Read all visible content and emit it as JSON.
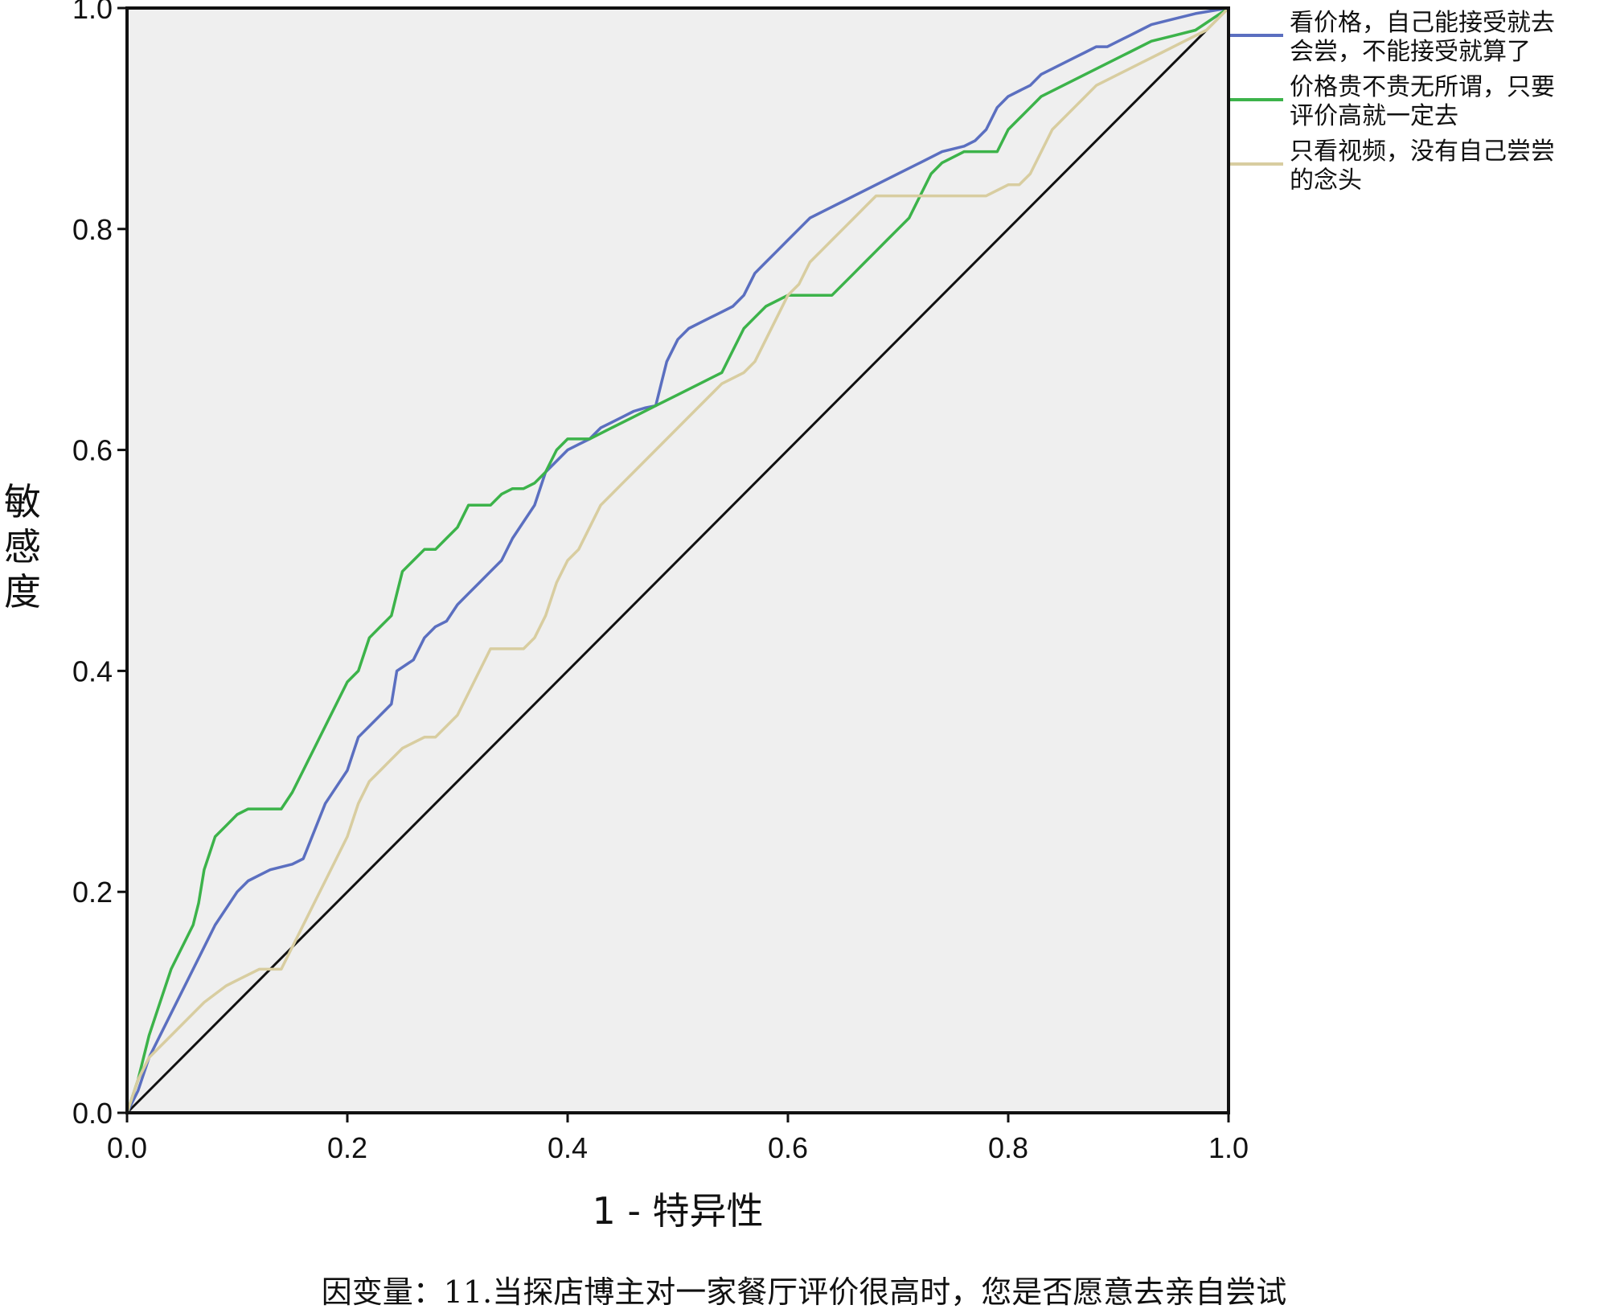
{
  "chart_data": {
    "type": "line",
    "title": "",
    "xlabel": "1 - 特异性",
    "ylabel": "敏感度",
    "caption": "因变量：11.当探店博主对一家餐厅评价很高时，您是否愿意去亲自尝试",
    "xlim": [
      0,
      1
    ],
    "ylim": [
      0,
      1
    ],
    "x_ticks": [
      "0.0",
      "0.2",
      "0.4",
      "0.6",
      "0.8",
      "1.0"
    ],
    "y_ticks": [
      "0.0",
      "0.2",
      "0.4",
      "0.6",
      "0.8",
      "1.0"
    ],
    "grid": false,
    "legend_position": "right",
    "plot_background": "#efefef",
    "reference_line": {
      "color": "#111111",
      "x": [
        0,
        1
      ],
      "y": [
        0,
        1
      ]
    },
    "series": [
      {
        "name_lines": [
          "看价格，自己能接受就去",
          "会尝，不能接受就算了"
        ],
        "color": "#5b6fc0",
        "x": [
          0,
          0.01,
          0.02,
          0.03,
          0.04,
          0.06,
          0.08,
          0.1,
          0.11,
          0.12,
          0.13,
          0.15,
          0.16,
          0.18,
          0.19,
          0.2,
          0.21,
          0.22,
          0.23,
          0.24,
          0.245,
          0.26,
          0.27,
          0.28,
          0.29,
          0.3,
          0.31,
          0.32,
          0.33,
          0.34,
          0.35,
          0.37,
          0.38,
          0.4,
          0.41,
          0.42,
          0.43,
          0.44,
          0.45,
          0.46,
          0.47,
          0.48,
          0.485,
          0.49,
          0.5,
          0.51,
          0.52,
          0.53,
          0.54,
          0.55,
          0.56,
          0.57,
          0.58,
          0.59,
          0.6,
          0.61,
          0.62,
          0.63,
          0.64,
          0.65,
          0.66,
          0.68,
          0.7,
          0.72,
          0.74,
          0.76,
          0.77,
          0.78,
          0.79,
          0.8,
          0.81,
          0.82,
          0.83,
          0.84,
          0.85,
          0.86,
          0.87,
          0.88,
          0.89,
          0.9,
          0.91,
          0.92,
          0.93,
          0.95,
          0.97,
          1.0
        ],
        "y": [
          0,
          0.02,
          0.05,
          0.07,
          0.09,
          0.13,
          0.17,
          0.2,
          0.21,
          0.215,
          0.22,
          0.225,
          0.23,
          0.28,
          0.295,
          0.31,
          0.34,
          0.35,
          0.36,
          0.37,
          0.4,
          0.41,
          0.43,
          0.44,
          0.445,
          0.46,
          0.47,
          0.48,
          0.49,
          0.5,
          0.52,
          0.55,
          0.58,
          0.6,
          0.605,
          0.61,
          0.62,
          0.625,
          0.63,
          0.635,
          0.638,
          0.64,
          0.66,
          0.68,
          0.7,
          0.71,
          0.715,
          0.72,
          0.725,
          0.73,
          0.74,
          0.76,
          0.77,
          0.78,
          0.79,
          0.8,
          0.81,
          0.815,
          0.82,
          0.825,
          0.83,
          0.84,
          0.85,
          0.86,
          0.87,
          0.875,
          0.88,
          0.89,
          0.91,
          0.92,
          0.925,
          0.93,
          0.94,
          0.945,
          0.95,
          0.955,
          0.96,
          0.965,
          0.965,
          0.97,
          0.975,
          0.98,
          0.985,
          0.99,
          0.995,
          1.0
        ]
      },
      {
        "name_lines": [
          "价格贵不贵无所谓，只要",
          "评价高就一定去"
        ],
        "color": "#3cb34a",
        "x": [
          0,
          0.01,
          0.02,
          0.03,
          0.04,
          0.05,
          0.06,
          0.065,
          0.07,
          0.075,
          0.08,
          0.09,
          0.1,
          0.11,
          0.12,
          0.13,
          0.14,
          0.15,
          0.16,
          0.17,
          0.18,
          0.19,
          0.2,
          0.21,
          0.22,
          0.23,
          0.24,
          0.245,
          0.25,
          0.26,
          0.27,
          0.28,
          0.29,
          0.3,
          0.31,
          0.32,
          0.33,
          0.34,
          0.35,
          0.36,
          0.37,
          0.38,
          0.39,
          0.4,
          0.42,
          0.44,
          0.46,
          0.48,
          0.5,
          0.52,
          0.54,
          0.55,
          0.56,
          0.57,
          0.58,
          0.6,
          0.62,
          0.64,
          0.66,
          0.67,
          0.68,
          0.69,
          0.7,
          0.71,
          0.72,
          0.73,
          0.74,
          0.76,
          0.78,
          0.79,
          0.8,
          0.81,
          0.82,
          0.83,
          0.85,
          0.87,
          0.89,
          0.91,
          0.93,
          0.95,
          0.97,
          1.0
        ],
        "y": [
          0,
          0.03,
          0.07,
          0.1,
          0.13,
          0.15,
          0.17,
          0.19,
          0.22,
          0.235,
          0.25,
          0.26,
          0.27,
          0.275,
          0.275,
          0.275,
          0.275,
          0.29,
          0.31,
          0.33,
          0.35,
          0.37,
          0.39,
          0.4,
          0.43,
          0.44,
          0.45,
          0.47,
          0.49,
          0.5,
          0.51,
          0.51,
          0.52,
          0.53,
          0.55,
          0.55,
          0.55,
          0.56,
          0.565,
          0.565,
          0.57,
          0.58,
          0.6,
          0.61,
          0.61,
          0.62,
          0.63,
          0.64,
          0.65,
          0.66,
          0.67,
          0.69,
          0.71,
          0.72,
          0.73,
          0.74,
          0.74,
          0.74,
          0.76,
          0.77,
          0.78,
          0.79,
          0.8,
          0.81,
          0.83,
          0.85,
          0.86,
          0.87,
          0.87,
          0.87,
          0.89,
          0.9,
          0.91,
          0.92,
          0.93,
          0.94,
          0.95,
          0.96,
          0.97,
          0.975,
          0.98,
          1.0
        ]
      },
      {
        "name_lines": [
          "只看视频，没有自己尝尝",
          "的念头"
        ],
        "color": "#d8cda0",
        "x": [
          0,
          0.01,
          0.02,
          0.03,
          0.05,
          0.07,
          0.09,
          0.1,
          0.12,
          0.14,
          0.15,
          0.16,
          0.17,
          0.18,
          0.19,
          0.2,
          0.21,
          0.22,
          0.23,
          0.24,
          0.25,
          0.26,
          0.27,
          0.28,
          0.29,
          0.3,
          0.31,
          0.32,
          0.33,
          0.34,
          0.35,
          0.36,
          0.37,
          0.38,
          0.39,
          0.4,
          0.41,
          0.42,
          0.43,
          0.44,
          0.45,
          0.46,
          0.48,
          0.5,
          0.52,
          0.54,
          0.56,
          0.57,
          0.58,
          0.59,
          0.6,
          0.61,
          0.62,
          0.63,
          0.64,
          0.65,
          0.66,
          0.67,
          0.68,
          0.7,
          0.72,
          0.74,
          0.76,
          0.78,
          0.8,
          0.81,
          0.82,
          0.83,
          0.84,
          0.86,
          0.88,
          0.9,
          0.92,
          0.94,
          0.96,
          0.98,
          1.0
        ],
        "y": [
          0,
          0.03,
          0.05,
          0.06,
          0.08,
          0.1,
          0.115,
          0.12,
          0.13,
          0.13,
          0.15,
          0.17,
          0.19,
          0.21,
          0.23,
          0.25,
          0.28,
          0.3,
          0.31,
          0.32,
          0.33,
          0.335,
          0.34,
          0.34,
          0.35,
          0.36,
          0.38,
          0.4,
          0.42,
          0.42,
          0.42,
          0.42,
          0.43,
          0.45,
          0.48,
          0.5,
          0.51,
          0.53,
          0.55,
          0.56,
          0.57,
          0.58,
          0.6,
          0.62,
          0.64,
          0.66,
          0.67,
          0.68,
          0.7,
          0.72,
          0.74,
          0.75,
          0.77,
          0.78,
          0.79,
          0.8,
          0.81,
          0.82,
          0.83,
          0.83,
          0.83,
          0.83,
          0.83,
          0.83,
          0.84,
          0.84,
          0.85,
          0.87,
          0.89,
          0.91,
          0.93,
          0.94,
          0.95,
          0.96,
          0.97,
          0.98,
          1.0
        ]
      }
    ]
  }
}
